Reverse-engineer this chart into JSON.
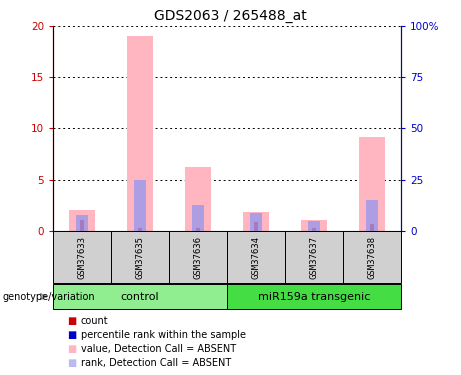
{
  "title": "GDS2063 / 265488_at",
  "samples": [
    "GSM37633",
    "GSM37635",
    "GSM37636",
    "GSM37634",
    "GSM37637",
    "GSM37638"
  ],
  "pink_values": [
    2.0,
    19.0,
    6.2,
    1.8,
    1.0,
    9.2
  ],
  "blue_values": [
    7.5,
    25.0,
    12.5,
    8.5,
    4.5,
    15.0
  ],
  "red_values": [
    1.0,
    0.3,
    0.3,
    0.8,
    0.3,
    0.6
  ],
  "ylim_left": [
    0,
    20
  ],
  "ylim_right": [
    0,
    100
  ],
  "yticks_left": [
    0,
    5,
    10,
    15,
    20
  ],
  "yticks_right": [
    0,
    25,
    50,
    75,
    100
  ],
  "ytick_labels_left": [
    "0",
    "5",
    "10",
    "15",
    "20"
  ],
  "ytick_labels_right": [
    "0",
    "25",
    "50",
    "75",
    "100%"
  ],
  "pink_color": "#FFB6C1",
  "blue_color": "#9999EE",
  "red_color": "#CC0000",
  "left_axis_color": "#CC0000",
  "right_axis_color": "#0000CC",
  "sample_box_color": "#D0D0D0",
  "group_colors": [
    "#90EE90",
    "#44DD44"
  ],
  "group_names": [
    "control",
    "miR159a transgenic"
  ],
  "group_ranges": [
    [
      0,
      2
    ],
    [
      3,
      5
    ]
  ],
  "legend_items": [
    {
      "label": "count",
      "color": "#CC0000",
      "marker_size": 7
    },
    {
      "label": "percentile rank within the sample",
      "color": "#0000CC",
      "marker_size": 7
    },
    {
      "label": "value, Detection Call = ABSENT",
      "color": "#FFB6C1",
      "marker_size": 7
    },
    {
      "label": "rank, Detection Call = ABSENT",
      "color": "#BBBBEE",
      "marker_size": 7
    }
  ],
  "genotype_label": "genotype/variation",
  "title_fontsize": 10,
  "bar_width": 0.4
}
